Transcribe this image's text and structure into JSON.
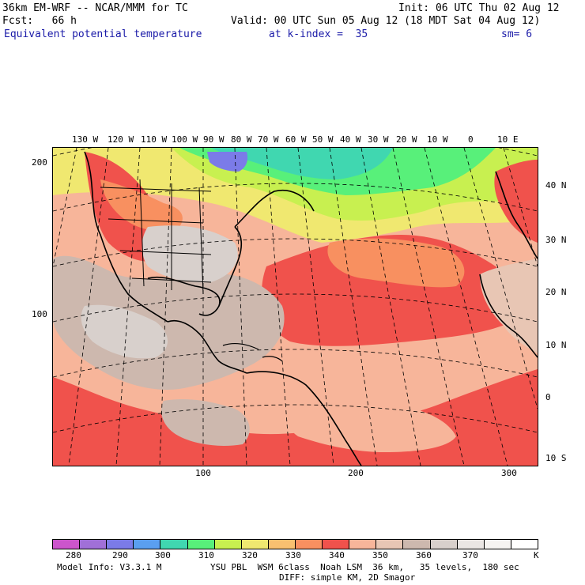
{
  "header": {
    "model": "36km EM-WRF -- NCAR/MMM for TC",
    "init": "Init: 06 UTC Thu 02 Aug 12",
    "forecast": "Fcst:   66 h",
    "valid": "Valid: 00 UTC Sun 05 Aug 12 (18 MDT Sat 04 Aug 12)",
    "field": "Equivalent potential temperature",
    "level": "at k-index =  35",
    "smoothing": "sm= 6"
  },
  "map": {
    "longitude_labels": [
      "130 W",
      "120 W",
      "110 W",
      "100 W",
      "90 W",
      "80 W",
      "70 W",
      "60 W",
      "50 W",
      "40 W",
      "30 W",
      "20 W",
      "10 W",
      "0",
      "10 E"
    ],
    "latitude_labels": [
      "40 N",
      "30 N",
      "20 N",
      "10 N",
      "0",
      "10 S"
    ],
    "y_ticks": [
      "200",
      "100"
    ],
    "x_ticks": [
      "100",
      "200",
      "300"
    ]
  },
  "colorbar": {
    "units": "K",
    "labels": [
      "280",
      "290",
      "300",
      "310",
      "320",
      "330",
      "340",
      "350",
      "360",
      "370"
    ],
    "colors": [
      "#cc55cc",
      "#a070d8",
      "#7b7be8",
      "#5a9ff0",
      "#40d7b0",
      "#58f07a",
      "#c8f050",
      "#f0e870",
      "#f8c070",
      "#f89060",
      "#f0524c",
      "#f7b59a",
      "#e8c6b4",
      "#cdb8ae",
      "#d8d0cc",
      "#eae6e4",
      "#f6f4f2",
      "#ffffff"
    ]
  },
  "footer": {
    "model_info": "Model Info: V3.3.1 M",
    "physics": "YSU PBL  WSM 6class  Noah LSM  36 km,   35 levels,  180 sec",
    "diffusion": "DIFF: simple KM, 2D Smagor"
  }
}
